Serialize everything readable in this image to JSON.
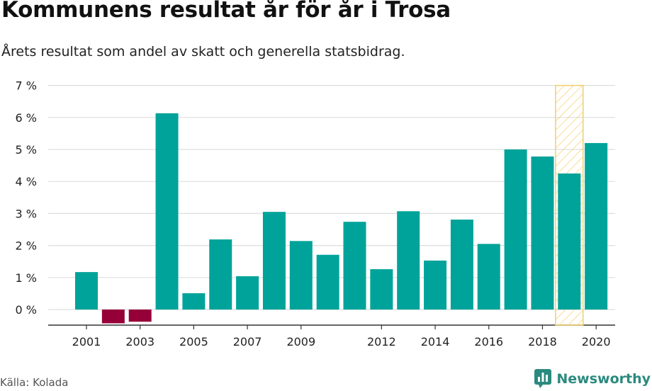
{
  "title": "Kommunens resultat år för år i Trosa",
  "subtitle": "Årets resultat som andel av skatt och generella statsbidrag.",
  "source": "Källa: Kolada",
  "brand": "Newsworthy",
  "colors": {
    "positive": "#00a39a",
    "negative": "#960039",
    "highlight": "#f2cf6b",
    "grid": "#dddddd",
    "brand": "#2b8a7e"
  },
  "chart_data": {
    "type": "bar",
    "categories": [
      "2001",
      "2002",
      "2003",
      "2004",
      "2005",
      "2006",
      "2007",
      "2008",
      "2009",
      "2010",
      "2011",
      "2012",
      "2013",
      "2014",
      "2015",
      "2016",
      "2017",
      "2018",
      "2019",
      "2020"
    ],
    "values": [
      1.17,
      -0.43,
      -0.38,
      6.13,
      0.51,
      2.19,
      1.04,
      3.05,
      2.14,
      1.71,
      2.74,
      1.26,
      3.07,
      1.53,
      2.81,
      2.05,
      5.0,
      4.78,
      4.25,
      5.2
    ],
    "xticks": [
      "2001",
      "2003",
      "2005",
      "2007",
      "2009",
      "2012",
      "2014",
      "2016",
      "2018",
      "2020"
    ],
    "yticks": [
      0,
      1,
      2,
      3,
      4,
      5,
      6,
      7
    ],
    "ytick_labels": [
      "0 %",
      "1 %",
      "2 %",
      "3 %",
      "4 %",
      "5 %",
      "6 %",
      "7 %"
    ],
    "ylim": [
      -0.5,
      7
    ],
    "highlight_category": "2019",
    "grid": true,
    "legend": "none"
  }
}
